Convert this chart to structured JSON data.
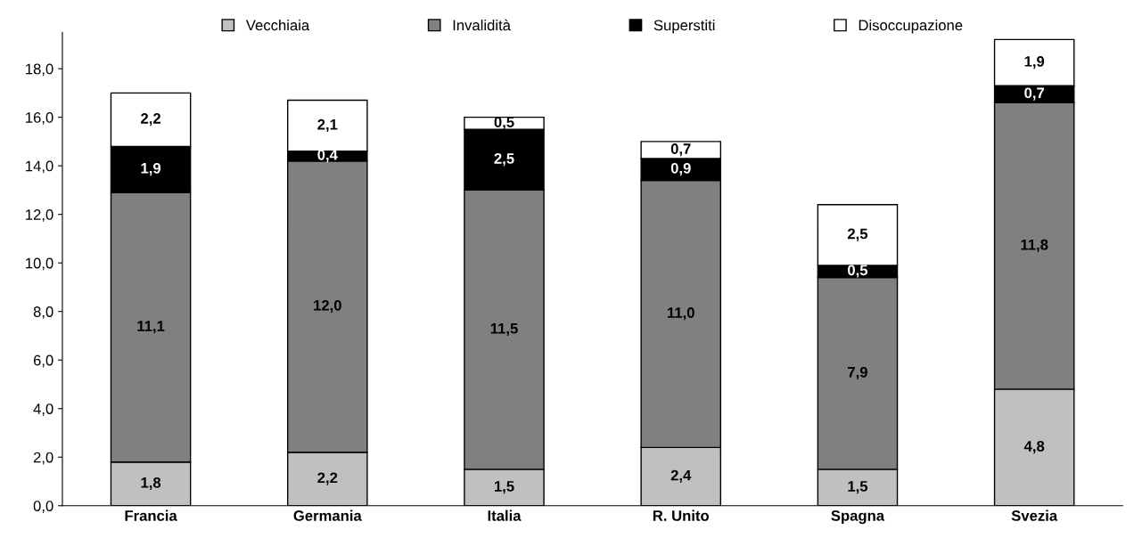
{
  "chart_data": {
    "type": "bar",
    "stacked": true,
    "categories": [
      "Francia",
      "Germania",
      "Italia",
      "R. Unito",
      "Spagna",
      "Svezia"
    ],
    "series": [
      {
        "name": "Vecchiaia",
        "color": "#c0c0c0",
        "values": [
          1.8,
          2.2,
          1.5,
          2.4,
          1.5,
          4.8
        ],
        "value_labels": [
          "1,8",
          "2,2",
          "1,5",
          "2,4",
          "1,5",
          "4,8"
        ]
      },
      {
        "name": "Invalidità",
        "color": "#808080",
        "values": [
          11.1,
          12.0,
          11.5,
          11.0,
          7.9,
          11.8
        ],
        "value_labels": [
          "11,1",
          "12,0",
          "11,5",
          "11,0",
          "7,9",
          "11,8"
        ]
      },
      {
        "name": "Superstiti",
        "color": "#000000",
        "values": [
          1.9,
          0.4,
          2.5,
          0.9,
          0.5,
          0.7
        ],
        "value_labels": [
          "1,9",
          "0,4",
          "2,5",
          "0,9",
          "0,5",
          "0,7"
        ]
      },
      {
        "name": "Disoccupazione",
        "color": "#ffffff",
        "values": [
          2.2,
          2.1,
          0.5,
          0.7,
          2.5,
          1.9
        ],
        "value_labels": [
          "2,2",
          "2,1",
          "0,5",
          "0,7",
          "2,5",
          "1,9"
        ]
      }
    ],
    "ylim": [
      0,
      19.5
    ],
    "yticks": [
      {
        "value": 0,
        "label": "0,0"
      },
      {
        "value": 2,
        "label": "2,0"
      },
      {
        "value": 4,
        "label": "4,0"
      },
      {
        "value": 6,
        "label": "6,0"
      },
      {
        "value": 8,
        "label": "8,0"
      },
      {
        "value": 10,
        "label": "10,0"
      },
      {
        "value": 12,
        "label": "12,0"
      },
      {
        "value": 14,
        "label": "14,0"
      },
      {
        "value": 16,
        "label": "16,0"
      },
      {
        "value": 18,
        "label": "18,0"
      }
    ],
    "grid": false,
    "legend": "top"
  }
}
